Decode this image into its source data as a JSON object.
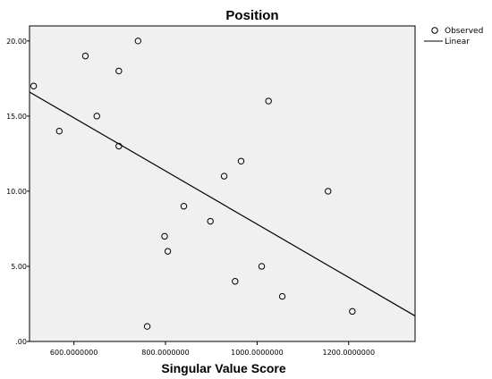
{
  "chart_data": {
    "type": "scatter",
    "title": "Position",
    "xlabel": "Singular Value Score",
    "ylabel": "",
    "xlim": [
      503,
      1345
    ],
    "ylim": [
      0,
      21
    ],
    "xticks": [
      {
        "value": 600,
        "label": "600.0000000"
      },
      {
        "value": 800,
        "label": "800.0000000"
      },
      {
        "value": 1000,
        "label": "1000.0000000"
      },
      {
        "value": 1200,
        "label": "1200.0000000"
      }
    ],
    "yticks": [
      {
        "value": 0,
        "label": ".00"
      },
      {
        "value": 5,
        "label": "5.00"
      },
      {
        "value": 10,
        "label": "10.00"
      },
      {
        "value": 15,
        "label": "15.00"
      },
      {
        "value": 20,
        "label": "20.00"
      }
    ],
    "grid": false,
    "legend_position": "top-right",
    "legend": [
      "Observed",
      "Linear"
    ],
    "series": [
      {
        "name": "Observed",
        "points": [
          [
            512,
            17
          ],
          [
            568,
            14
          ],
          [
            625,
            19
          ],
          [
            650,
            15
          ],
          [
            698,
            18
          ],
          [
            698,
            13
          ],
          [
            740,
            20
          ],
          [
            760,
            1
          ],
          [
            798,
            7
          ],
          [
            805,
            6
          ],
          [
            840,
            9
          ],
          [
            898,
            8
          ],
          [
            928,
            11
          ],
          [
            952,
            4
          ],
          [
            965,
            12
          ],
          [
            1010,
            5
          ],
          [
            1025,
            16
          ],
          [
            1055,
            3
          ],
          [
            1155,
            10
          ],
          [
            1208,
            2
          ]
        ]
      },
      {
        "name": "Linear",
        "type": "line",
        "points": [
          [
            503,
            16.6
          ],
          [
            1345,
            1.7
          ]
        ]
      }
    ],
    "colors": {
      "plot_background": "#f0f0f0",
      "marker": "#000000",
      "line": "#000000"
    }
  }
}
